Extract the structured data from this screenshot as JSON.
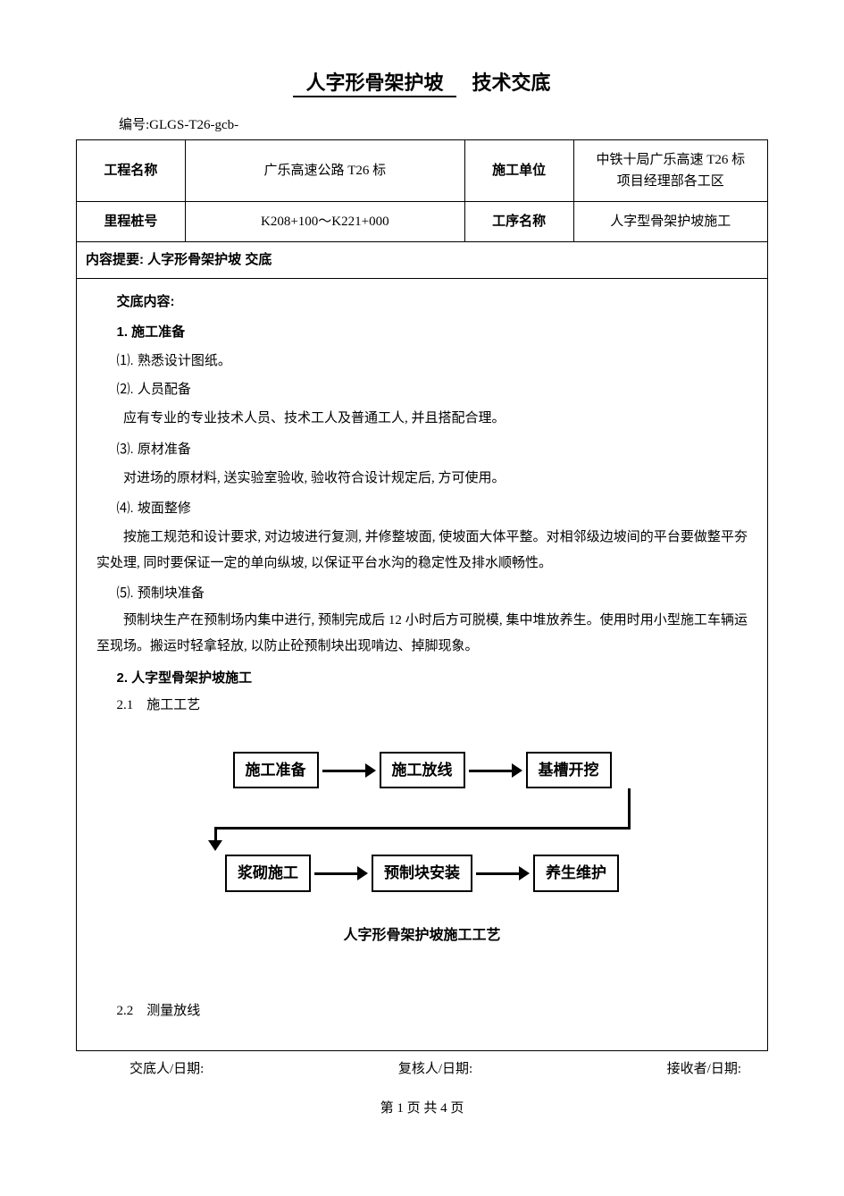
{
  "title": {
    "boxed": "人字形骨架护坡",
    "plain": "技术交底"
  },
  "doc_no_label": "编号:",
  "doc_no_value": "GLGS-T26-gcb-",
  "table": {
    "r1c1_label": "工程名称",
    "r1c1_value": "广乐高速公路 T26 标",
    "r1c3_label": "施工单位",
    "r1c3_value": "中铁十局广乐高速 T26 标\n项目经理部各工区",
    "r2c1_label": "里程桩号",
    "r2c1_value": "K208+100～K221+000",
    "r2c3_label": "工序名称",
    "r2c3_value": "人字型骨架护坡施工",
    "summary": "内容提要: 人字形骨架护坡 交底"
  },
  "content": {
    "heading": "交底内容:",
    "s1": {
      "title": "1. 施工准备",
      "i1": "⑴. 熟悉设计图纸。",
      "i2": "⑵. 人员配备",
      "i2_body": "应有专业的专业技术人员、技术工人及普通工人, 并且搭配合理。",
      "i3": "⑶. 原材准备",
      "i3_body": "对进场的原材料, 送实验室验收, 验收符合设计规定后, 方可使用。",
      "i4": "⑷. 坡面整修",
      "i4_body": "按施工规范和设计要求, 对边坡进行复测, 并修整坡面, 使坡面大体平整。对相邻级边坡间的平台要做整平夯实处理, 同时要保证一定的单向纵坡, 以保证平台水沟的稳定性及排水顺畅性。",
      "i5": "⑸. 预制块准备",
      "i5_body": "预制块生产在预制场内集中进行, 预制完成后 12 小时后方可脱模, 集中堆放养生。使用时用小型施工车辆运至现场。搬运时轻拿轻放, 以防止砼预制块出现啃边、掉脚现象。"
    },
    "s2": {
      "title": "2. 人字型骨架护坡施工",
      "i1": "2.1　施工工艺",
      "i2": "2.2　测量放线"
    }
  },
  "flowchart": {
    "nodes_top": [
      "施工准备",
      "施工放线",
      "基槽开挖"
    ],
    "nodes_bottom": [
      "浆砌施工",
      "预制块安装",
      "养生维护"
    ],
    "caption": "人字形骨架护坡施工工艺",
    "box_border_color": "#000000",
    "arrow_color": "#000000",
    "font_size": 17
  },
  "footer": {
    "sign1": "交底人/日期:",
    "sign2": "复核人/日期:",
    "sign3": "接收者/日期:",
    "page": "第 1 页 共 4 页"
  }
}
